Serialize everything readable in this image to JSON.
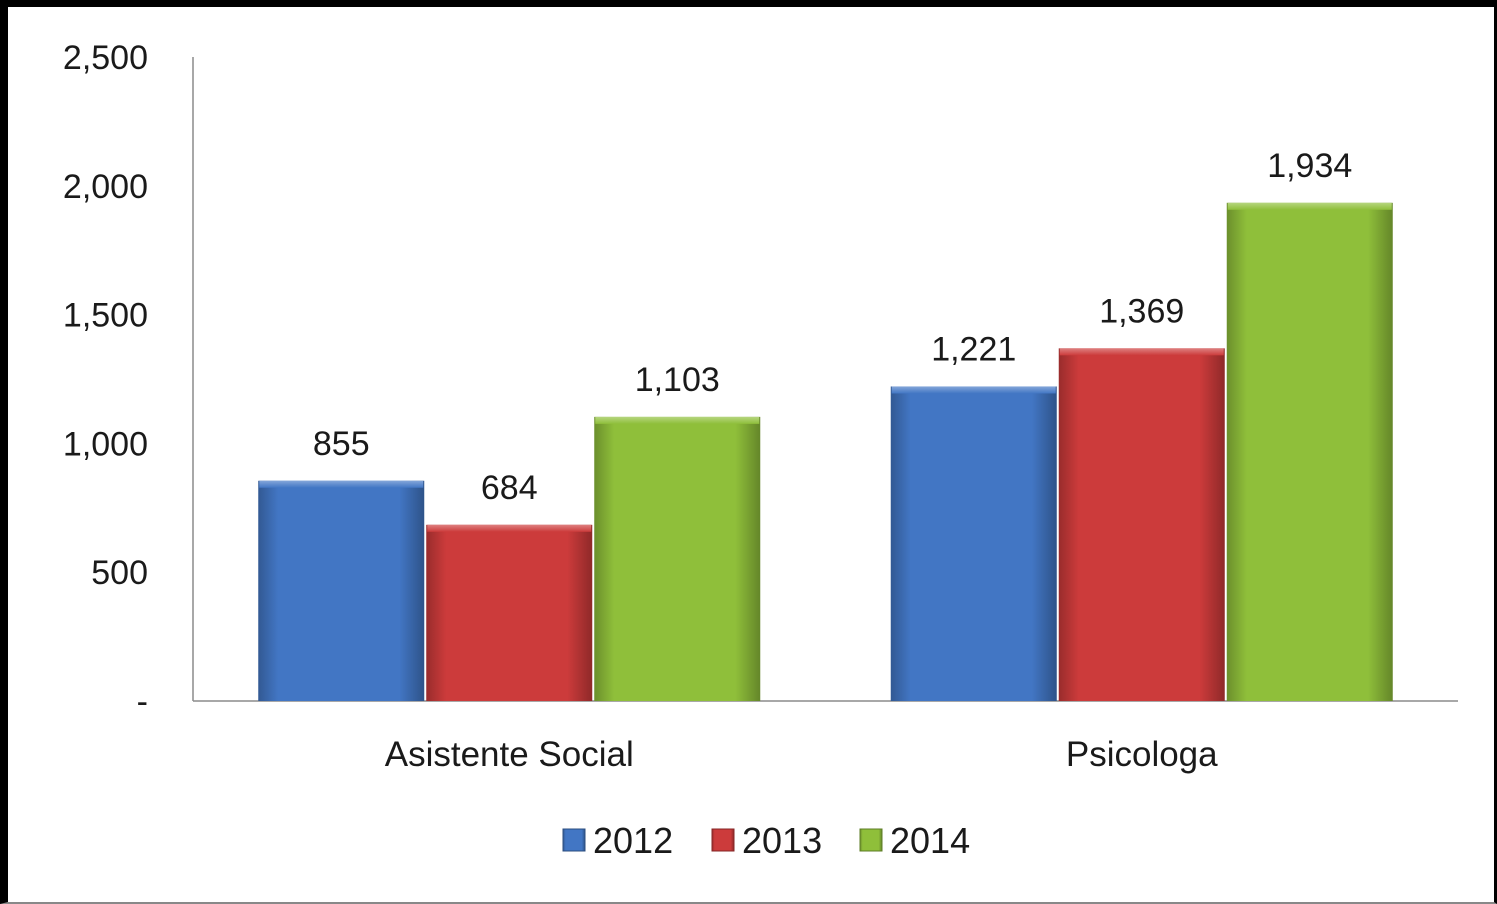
{
  "chart_data": {
    "type": "bar",
    "categories": [
      "Asistente Social",
      "Psicologa"
    ],
    "series": [
      {
        "name": "2012",
        "values": [
          855,
          1221
        ],
        "data_labels": [
          "855",
          "1,221"
        ],
        "color": "#4276c4"
      },
      {
        "name": "2013",
        "values": [
          684,
          1369
        ],
        "data_labels": [
          "684",
          "1,369"
        ],
        "color": "#cc3b3b"
      },
      {
        "name": "2014",
        "values": [
          1103,
          1934
        ],
        "data_labels": [
          "1,103",
          "1,934"
        ],
        "color": "#8fbf3a"
      }
    ],
    "ylim": [
      0,
      2500
    ],
    "y_ticks": [
      {
        "value": 0,
        "label": "-"
      },
      {
        "value": 500,
        "label": "500"
      },
      {
        "value": 1000,
        "label": "1,000"
      },
      {
        "value": 1500,
        "label": "1,500"
      },
      {
        "value": 2000,
        "label": "2,000"
      },
      {
        "value": 2500,
        "label": "2,500"
      }
    ],
    "grid": false,
    "legend_position": "bottom"
  }
}
